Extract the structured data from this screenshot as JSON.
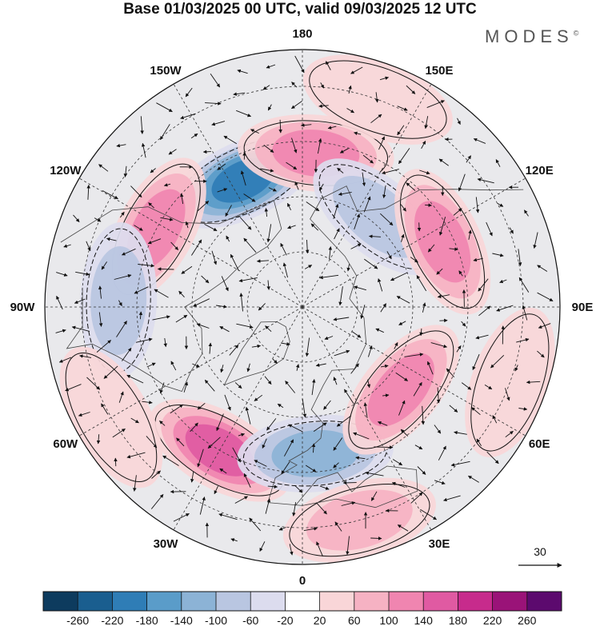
{
  "title": "Base 01/03/2025 00 UTC, valid 09/03/2025 12 UTC",
  "brand": "MODES",
  "brand_mark": "©",
  "longitude_labels": [
    {
      "id": "180",
      "text": "180",
      "lon": 180
    },
    {
      "id": "150e",
      "text": "150E",
      "lon": 150
    },
    {
      "id": "120e",
      "text": "120E",
      "lon": 120
    },
    {
      "id": "90e",
      "text": "90E",
      "lon": 90
    },
    {
      "id": "60e",
      "text": "60E",
      "lon": 60
    },
    {
      "id": "30e",
      "text": "30E",
      "lon": 30
    },
    {
      "id": "0",
      "text": "0",
      "lon": 0
    },
    {
      "id": "30w",
      "text": "30W",
      "lon": -30
    },
    {
      "id": "60w",
      "text": "60W",
      "lon": -60
    },
    {
      "id": "90w",
      "text": "90W",
      "lon": -90
    },
    {
      "id": "120w",
      "text": "120W",
      "lon": -120
    },
    {
      "id": "150w",
      "text": "150W",
      "lon": -150
    }
  ],
  "wind_reference": {
    "label": "30"
  },
  "colorbar": {
    "colors": [
      "#0d3b5e",
      "#1a5e8f",
      "#2f7db6",
      "#5a9cc9",
      "#8cb3d6",
      "#b9c6e1",
      "#dcdcee",
      "#ffffff",
      "#f9d6d8",
      "#f6b2c3",
      "#f085b0",
      "#e05aa2",
      "#c72b8c",
      "#9a1378",
      "#5c0a6e"
    ],
    "ticks": [
      "-260",
      "-220",
      "-180",
      "-140",
      "-100",
      "-60",
      "-20",
      "20",
      "60",
      "100",
      "140",
      "180",
      "220",
      "260"
    ]
  },
  "anomalies": [
    {
      "lon": -155,
      "lat": 52,
      "value": -230
    },
    {
      "lon": 175,
      "lat": 48,
      "value": 150
    },
    {
      "lon": -118,
      "lat": 45,
      "value": 150
    },
    {
      "lon": -92,
      "lat": 40,
      "value": -110
    },
    {
      "lon": -30,
      "lat": 45,
      "value": 190
    },
    {
      "lon": 5,
      "lat": 50,
      "value": -120
    },
    {
      "lon": 140,
      "lat": 58,
      "value": -90
    },
    {
      "lon": 115,
      "lat": 48,
      "value": 130
    },
    {
      "lon": 50,
      "lat": 55,
      "value": 140
    },
    {
      "lon": 15,
      "lat": 30,
      "value": 110
    },
    {
      "lon": 70,
      "lat": 30,
      "value": 70
    },
    {
      "lon": -60,
      "lat": 30,
      "value": 40
    },
    {
      "lon": 160,
      "lat": 30,
      "value": 40
    }
  ]
}
